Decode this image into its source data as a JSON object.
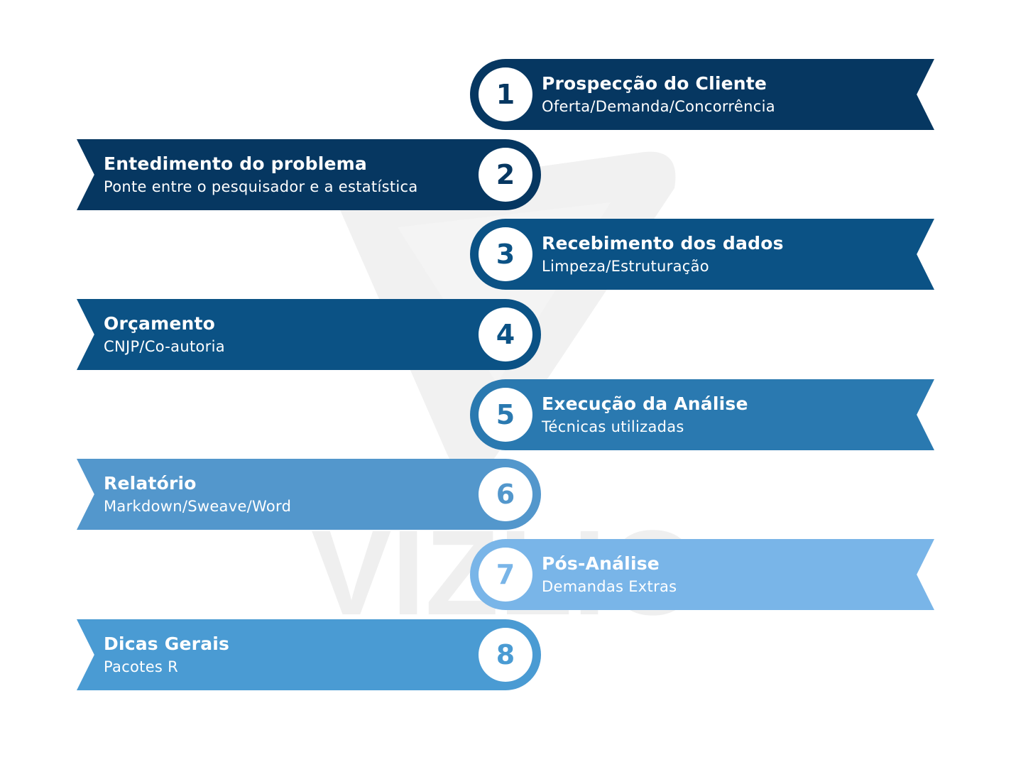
{
  "watermark": {
    "text": "VIZLIO",
    "color": "#bdbdbd"
  },
  "steps": [
    {
      "number": "1",
      "title": "Prospecção do Cliente",
      "subtitle": "Oferta/Demanda/Concorrência",
      "color": "#063761",
      "side": "right"
    },
    {
      "number": "2",
      "title": "Entedimento do problema",
      "subtitle": "Ponte entre o pesquisador e a estatística",
      "color": "#063761",
      "side": "left"
    },
    {
      "number": "3",
      "title": "Recebimento dos dados",
      "subtitle": "Limpeza/Estruturação",
      "color": "#0b5285",
      "side": "right"
    },
    {
      "number": "4",
      "title": "Orçamento",
      "subtitle": "CNJP/Co-autoria",
      "color": "#0b5285",
      "side": "left"
    },
    {
      "number": "5",
      "title": "Execução da Análise",
      "subtitle": "Técnicas utilizadas",
      "color": "#2a79b0",
      "side": "right"
    },
    {
      "number": "6",
      "title": "Relatório",
      "subtitle": "Markdown/Sweave/Word",
      "color": "#5397cc",
      "side": "left"
    },
    {
      "number": "7",
      "title": "Pós-Análise",
      "subtitle": "Demandas Extras",
      "color": "#79b5e8",
      "side": "right"
    },
    {
      "number": "8",
      "title": "Dicas Gerais",
      "subtitle": "Pacotes R",
      "color": "#4a9bd3",
      "side": "left"
    }
  ]
}
